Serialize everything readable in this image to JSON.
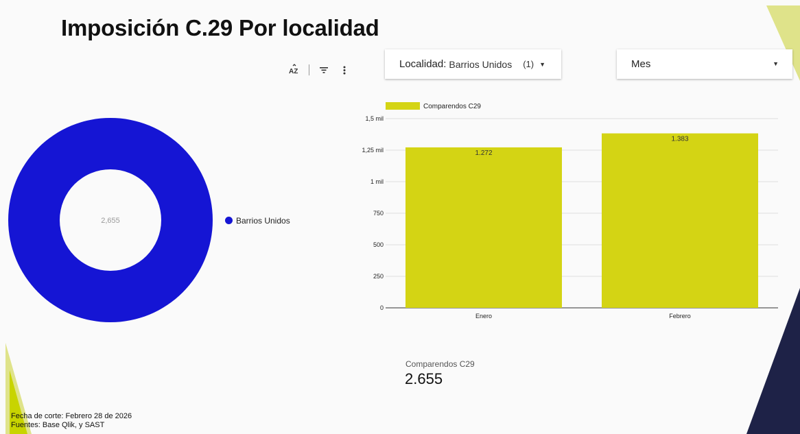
{
  "page": {
    "title": "Imposición C.29 Por localidad"
  },
  "colors": {
    "donut": "#1515d4",
    "bar": "#d4d414",
    "deco_yellow": "#c8d400",
    "deco_light": "#dfe38a",
    "deco_navy": "#1e2247"
  },
  "toolbar": {
    "sort_icon": "sort-az-icon",
    "filter_icon": "filter-icon",
    "more_icon": "more-vert-icon"
  },
  "filters": {
    "localidad": {
      "label": "Localidad:",
      "value": "Barrios Unidos",
      "count": "(1)",
      "caret": "▼"
    },
    "mes": {
      "label": "Mes",
      "caret": "▼"
    }
  },
  "donut": {
    "center_text": "2,655",
    "legend_label": "Barrios Unidos"
  },
  "scorecard": {
    "label": "Comparendos C29",
    "value": "2.655"
  },
  "footer": {
    "line1": "Fecha de corte: Febrero 28 de 2026",
    "line2": "Fuentes: Base Qlik, y SAST"
  },
  "chart_data": [
    {
      "type": "pie",
      "categories": [
        "Barrios Unidos"
      ],
      "values": [
        2655
      ],
      "center_label": "2,655",
      "legend": "right"
    },
    {
      "type": "bar",
      "categories": [
        "Enero",
        "Febrero"
      ],
      "series": [
        {
          "name": "Comparendos C29",
          "values": [
            1272,
            1383
          ],
          "labels": [
            "1.272",
            "1.383"
          ]
        }
      ],
      "ylim": [
        0,
        1500
      ],
      "yticks": [
        0,
        250,
        500,
        750,
        1000,
        1250,
        1500
      ],
      "ytick_labels": [
        "0",
        "250",
        "500",
        "750",
        "1 mil",
        "1,25 mil",
        "1,5 mil"
      ],
      "grid": true,
      "legend": "top-left"
    }
  ]
}
